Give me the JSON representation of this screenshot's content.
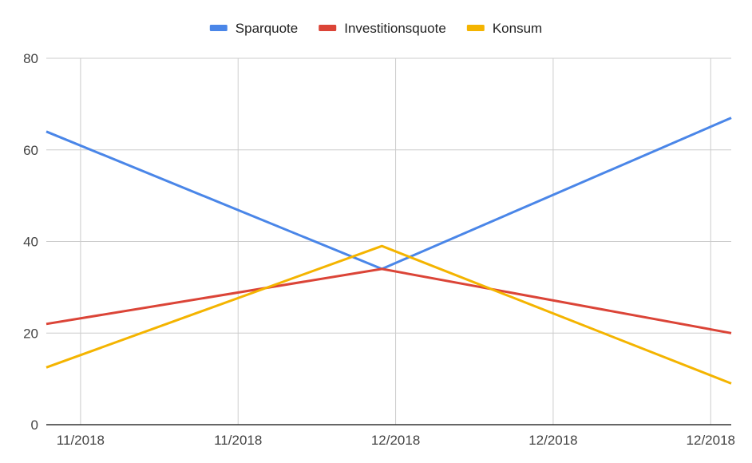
{
  "chart_data": {
    "type": "line",
    "legend_position": "top",
    "grid": true,
    "x": [
      0.0,
      0.4,
      0.77,
      1.0
    ],
    "x_ticks": [
      {
        "pos": 0.05,
        "label": "11/2018"
      },
      {
        "pos": 0.28,
        "label": "11/2018"
      },
      {
        "pos": 0.51,
        "label": "12/2018"
      },
      {
        "pos": 0.74,
        "label": "12/2018"
      },
      {
        "pos": 0.97,
        "label": "12/2018"
      }
    ],
    "xlim": [
      0,
      1
    ],
    "y_ticks": [
      0,
      20,
      40,
      60,
      80
    ],
    "ylim": [
      0,
      80
    ],
    "series": [
      {
        "name": "Sparquote",
        "color": "#4a86e8",
        "points": [
          [
            0.0,
            64
          ],
          [
            0.49,
            34
          ],
          [
            1.0,
            67
          ]
        ]
      },
      {
        "name": "Investitionsquote",
        "color": "#db4437",
        "points": [
          [
            0.0,
            22
          ],
          [
            0.49,
            34
          ],
          [
            1.0,
            20
          ]
        ]
      },
      {
        "name": "Konsum",
        "color": "#f4b400",
        "points": [
          [
            0.0,
            12.5
          ],
          [
            0.49,
            39
          ],
          [
            1.0,
            9
          ]
        ]
      }
    ]
  }
}
